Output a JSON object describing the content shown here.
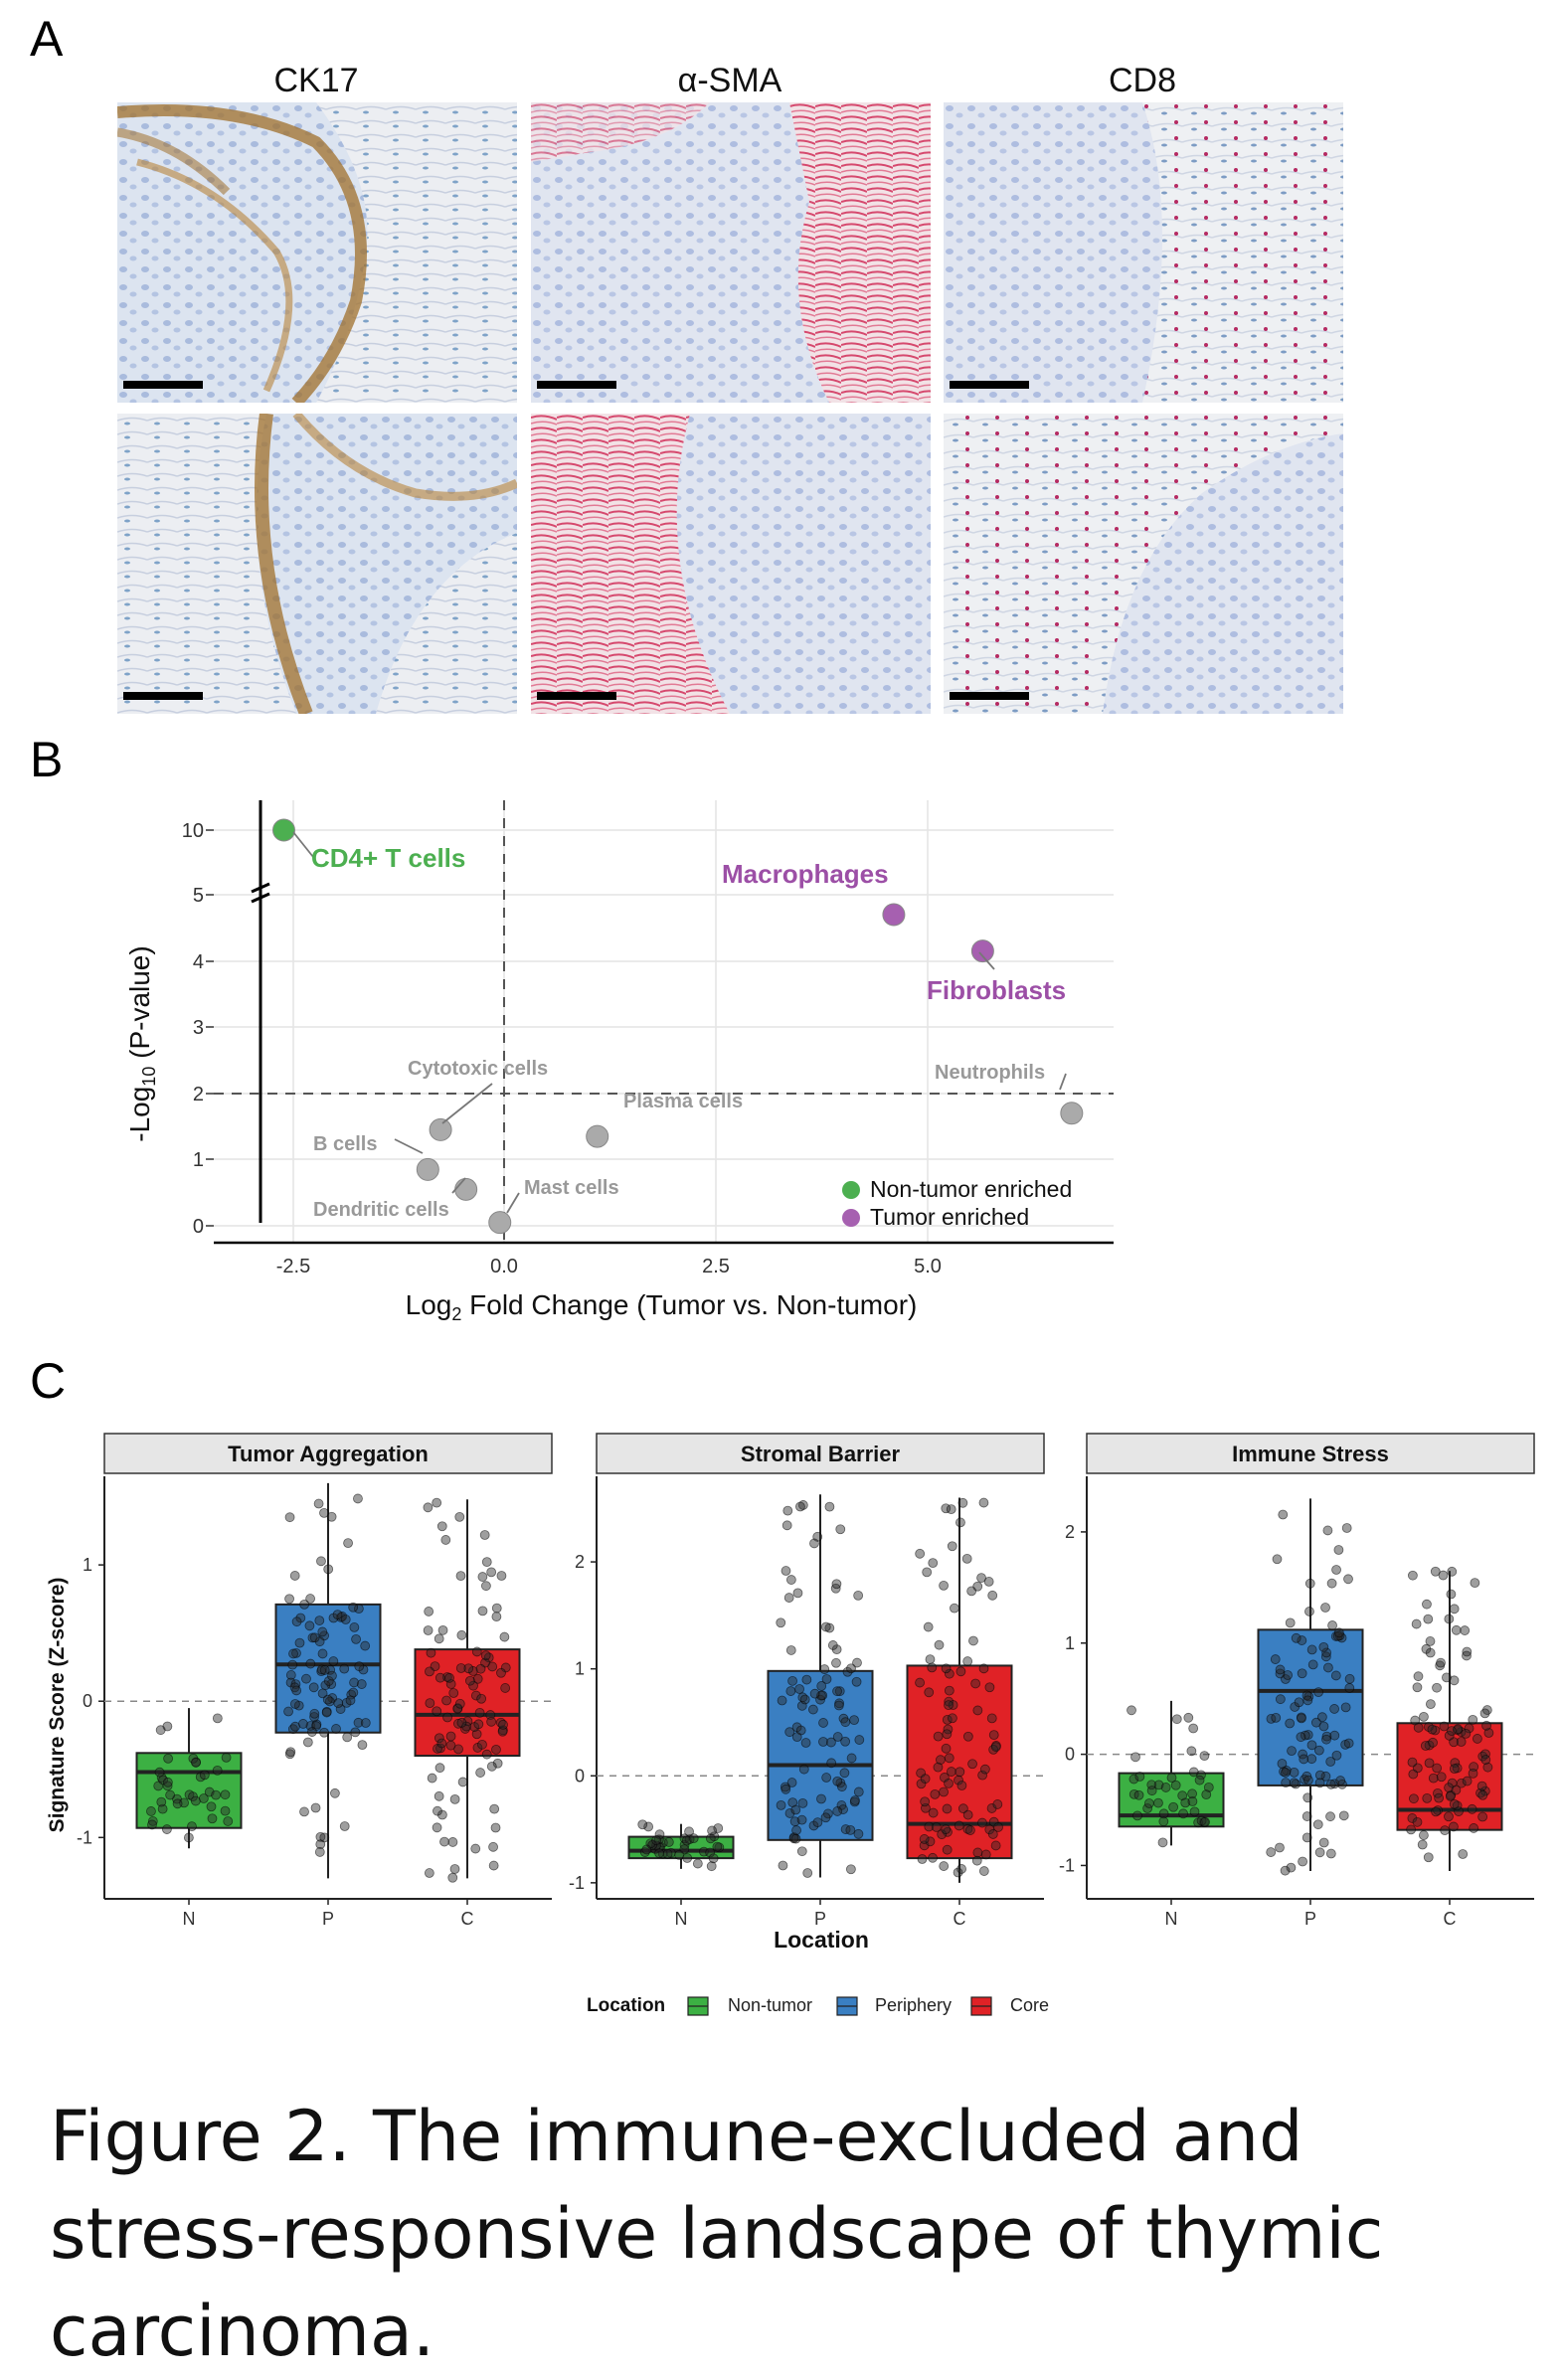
{
  "panel_a": {
    "letter": "A",
    "stains": [
      "CK17",
      "α-SMA",
      "CD8"
    ]
  },
  "panel_b": {
    "letter": "B",
    "ylabel": "-Log10 (P-value)",
    "xlabel": "Log2 Fold Change (Tumor vs. Non-tumor)",
    "legend": [
      "Non-tumor enriched",
      "Tumor enriched"
    ]
  },
  "panel_c": {
    "letter": "C",
    "ylabel": "Signature Score (Z-score)",
    "xlabel": "Location",
    "legend_title": "Location",
    "legend": [
      "Non-tumor",
      "Periphery",
      "Core"
    ]
  },
  "caption": "Figure 2. The immune-excluded and stress-responsive landscape of thymic carcinoma.",
  "colors": {
    "non_tumor": "#4caf50",
    "tumor": "#a660b0",
    "neutral": "#aaaaaa",
    "box_n": "#3cb043",
    "box_p": "#3a7fc2",
    "box_c": "#e02226"
  },
  "chart_data": [
    {
      "type": "scatter",
      "xlabel": "Log2 Fold Change (Tumor vs. Non-tumor)",
      "ylabel": "-Log10 (P-value)",
      "x_ticks": [
        "-2.5",
        "0.0",
        "2.5",
        "5.0"
      ],
      "y_ticks": [
        "0",
        "1",
        "2",
        "3",
        "4",
        "5",
        "10"
      ],
      "points": [
        {
          "label": "CD4+ T cells",
          "x": -2.6,
          "y": 10.0,
          "group": "Non-tumor enriched"
        },
        {
          "label": "Macrophages",
          "x": 4.6,
          "y": 4.7,
          "group": "Tumor enriched"
        },
        {
          "label": "Fibroblasts",
          "x": 5.65,
          "y": 4.15,
          "group": "Tumor enriched"
        },
        {
          "label": "Neutrophils",
          "x": 6.7,
          "y": 1.7,
          "group": "none"
        },
        {
          "label": "Plasma cells",
          "x": 1.1,
          "y": 1.35,
          "group": "none"
        },
        {
          "label": "Cytotoxic cells",
          "x": -0.75,
          "y": 1.45,
          "group": "none"
        },
        {
          "label": "B cells",
          "x": -0.9,
          "y": 0.85,
          "group": "none"
        },
        {
          "label": "Dendritic cells",
          "x": -0.45,
          "y": 0.55,
          "group": "none"
        },
        {
          "label": "Mast cells",
          "x": -0.05,
          "y": 0.05,
          "group": "none"
        }
      ],
      "hline": 2,
      "vline": 0,
      "legend": [
        "Non-tumor enriched",
        "Tumor enriched"
      ]
    },
    {
      "type": "box",
      "title": "Tumor Aggregation",
      "categories": [
        "N",
        "P",
        "C"
      ],
      "y_ticks": [
        "-1",
        "0",
        "1"
      ],
      "ylim": [
        -1.45,
        1.65
      ],
      "boxes": [
        {
          "q1": -0.93,
          "median": -0.52,
          "q3": -0.38,
          "wlo": -1.08,
          "whi": -0.05
        },
        {
          "q1": -0.23,
          "median": 0.27,
          "q3": 0.71,
          "wlo": -1.3,
          "whi": 1.6
        },
        {
          "q1": -0.4,
          "median": -0.1,
          "q3": 0.38,
          "wlo": -1.3,
          "whi": 1.48
        }
      ]
    },
    {
      "type": "box",
      "title": "Stromal Barrier",
      "categories": [
        "N",
        "P",
        "C"
      ],
      "y_ticks": [
        "-1",
        "0",
        "1",
        "2"
      ],
      "ylim": [
        -1.15,
        2.8
      ],
      "boxes": [
        {
          "q1": -0.77,
          "median": -0.7,
          "q3": -0.57,
          "wlo": -0.87,
          "whi": -0.45
        },
        {
          "q1": -0.6,
          "median": 0.1,
          "q3": 0.98,
          "wlo": -0.95,
          "whi": 2.63
        },
        {
          "q1": -0.77,
          "median": -0.45,
          "q3": 1.03,
          "wlo": -1.0,
          "whi": 2.6
        }
      ]
    },
    {
      "type": "box",
      "title": "Immune Stress",
      "categories": [
        "N",
        "P",
        "C"
      ],
      "y_ticks": [
        "-1",
        "0",
        "1",
        "2"
      ],
      "ylim": [
        -1.3,
        2.5
      ],
      "boxes": [
        {
          "q1": -0.65,
          "median": -0.55,
          "q3": -0.17,
          "wlo": -0.82,
          "whi": 0.48
        },
        {
          "q1": -0.28,
          "median": 0.57,
          "q3": 1.12,
          "wlo": -1.05,
          "whi": 2.3
        },
        {
          "q1": -0.68,
          "median": -0.5,
          "q3": 0.28,
          "wlo": -1.05,
          "whi": 1.65
        }
      ]
    }
  ]
}
